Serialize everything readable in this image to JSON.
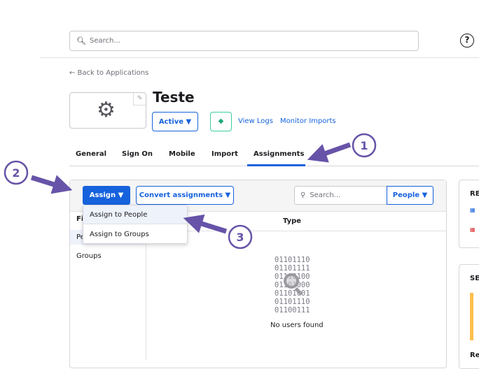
{
  "header": {
    "search_placeholder": "Search...",
    "help": "?"
  },
  "back_link": "← Back to Applications",
  "app": {
    "title": "Teste",
    "status": "Active ▼",
    "view_logs": "View Logs",
    "monitor_imports": "Monitor Imports"
  },
  "tabs": [
    "General",
    "Sign On",
    "Mobile",
    "Import",
    "Assignments"
  ],
  "toolbar": {
    "assign": "Assign ▼",
    "convert": "Convert assignments ▼",
    "search_placeholder": "Search...",
    "people_filter": "People ▼"
  },
  "dropdown": [
    "Assign to People",
    "Assign to Groups"
  ],
  "filters": {
    "header": "Fi",
    "people": "Pe",
    "groups": "Groups"
  },
  "table": {
    "type_header": "Type",
    "binary": [
      "01101110",
      "01101111",
      "01110100",
      "01101000",
      "01101001",
      "01101110",
      "01100111"
    ],
    "empty": "No users found"
  },
  "right": {
    "panel1": "RE",
    "panel2": "SE",
    "panel2_footer": "Re"
  },
  "annotations": [
    "1",
    "2",
    "3"
  ],
  "colors": {
    "accent": "#1662dd",
    "annotation": "#6753a8"
  }
}
